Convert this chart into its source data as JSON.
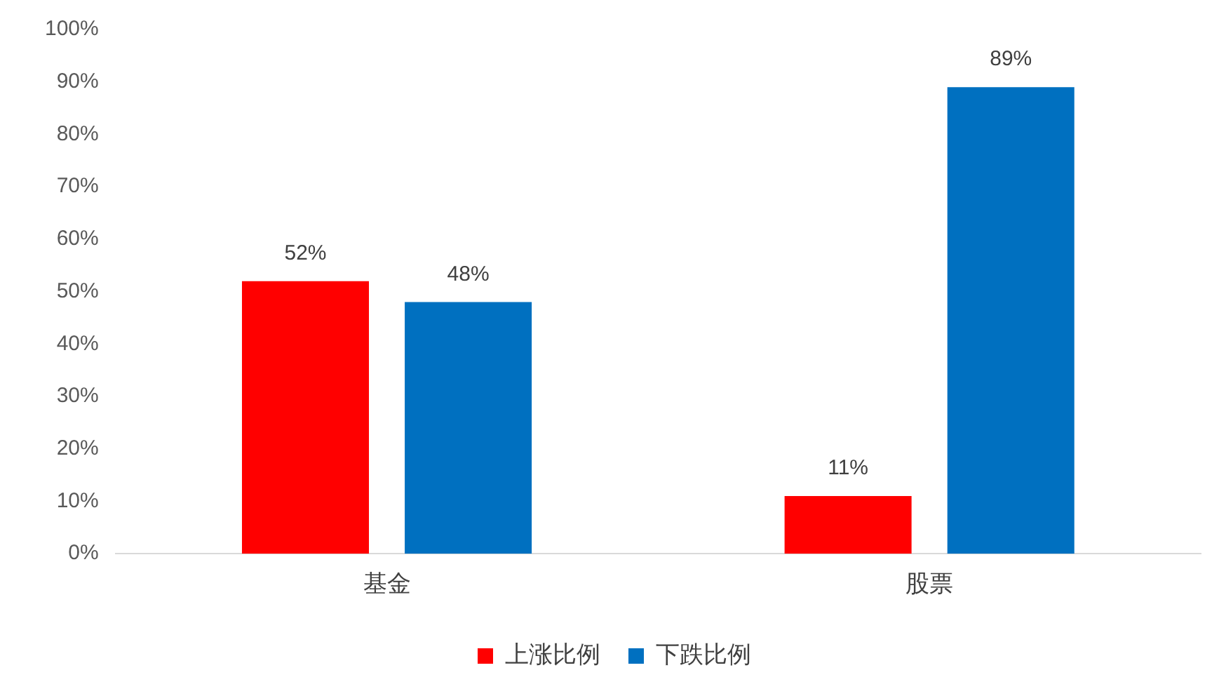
{
  "chart_data": {
    "type": "bar",
    "categories": [
      "基金",
      "股票"
    ],
    "series": [
      {
        "name": "上涨比例",
        "color": "#ff0000",
        "values": [
          52,
          11
        ],
        "value_labels": [
          "52%",
          "11%"
        ]
      },
      {
        "name": "下跌比例",
        "color": "#0070c0",
        "values": [
          48,
          89
        ],
        "value_labels": [
          "48%",
          "89%"
        ]
      }
    ],
    "ylim": [
      0,
      100
    ],
    "yticks": [
      {
        "value": 0,
        "label": "0%"
      },
      {
        "value": 10,
        "label": "10%"
      },
      {
        "value": 20,
        "label": "20%"
      },
      {
        "value": 30,
        "label": "30%"
      },
      {
        "value": 40,
        "label": "40%"
      },
      {
        "value": 50,
        "label": "50%"
      },
      {
        "value": 60,
        "label": "60%"
      },
      {
        "value": 70,
        "label": "70%"
      },
      {
        "value": 80,
        "label": "80%"
      },
      {
        "value": 90,
        "label": "90%"
      },
      {
        "value": 100,
        "label": "100%"
      }
    ],
    "grid": false,
    "legend": "bottom"
  }
}
